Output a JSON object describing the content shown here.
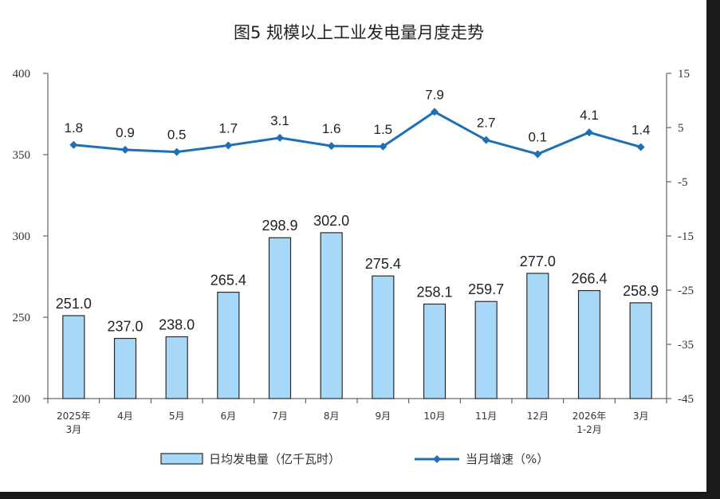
{
  "chart_data": {
    "type": "bar",
    "title": "图5  规模以上工业发电量月度走势",
    "categories": [
      [
        "2025年",
        "3月"
      ],
      [
        "4月"
      ],
      [
        "5月"
      ],
      [
        "6月"
      ],
      [
        "7月"
      ],
      [
        "8月"
      ],
      [
        "9月"
      ],
      [
        "10月"
      ],
      [
        "11月"
      ],
      [
        "12月"
      ],
      [
        "2026年",
        "1-2月"
      ],
      [
        "3月"
      ]
    ],
    "series": [
      {
        "name": "日均发电量（亿千瓦时）",
        "kind": "bar",
        "axis": "left",
        "color": "#a8d8f8",
        "values": [
          251.0,
          237.0,
          238.0,
          265.4,
          298.9,
          302.0,
          275.4,
          258.1,
          259.7,
          277.0,
          266.4,
          258.9
        ],
        "labels": [
          "251.0",
          "237.0",
          "238.0",
          "265.4",
          "298.9",
          "302.0",
          "275.4",
          "258.1",
          "259.7",
          "277.0",
          "266.4",
          "258.9"
        ]
      },
      {
        "name": "当月增速（%）",
        "kind": "line",
        "axis": "right",
        "color": "#1f6fb5",
        "values": [
          1.8,
          0.9,
          0.5,
          1.7,
          3.1,
          1.6,
          1.5,
          7.9,
          2.7,
          0.1,
          4.1,
          1.4
        ],
        "labels": [
          "1.8",
          "0.9",
          "0.5",
          "1.7",
          "3.1",
          "1.6",
          "1.5",
          "7.9",
          "2.7",
          "0.1",
          "4.1",
          "1.4"
        ]
      }
    ],
    "y_left": {
      "min": 200,
      "max": 400,
      "ticks": [
        "200",
        "250",
        "300",
        "350",
        "400"
      ]
    },
    "y_right": {
      "min": -45,
      "max": 15,
      "ticks": [
        "-45",
        "-35",
        "-25",
        "-15",
        "-5",
        "5",
        "15"
      ]
    },
    "grid": false,
    "legend_position": "bottom"
  }
}
